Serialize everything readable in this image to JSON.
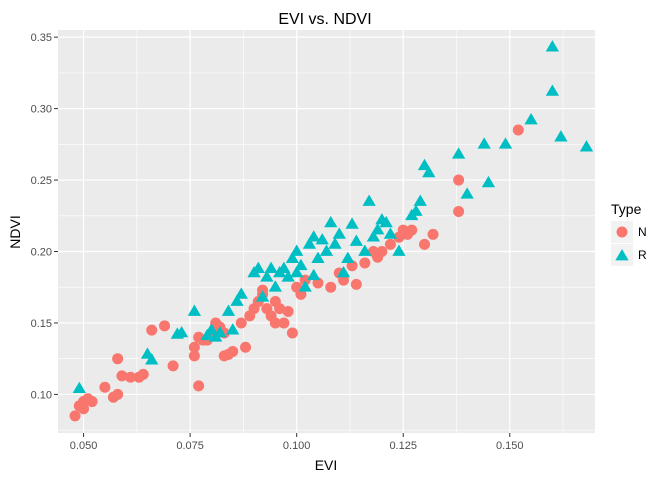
{
  "chart_data": {
    "type": "scatter",
    "title": "EVI vs. NDVI",
    "xlabel": "EVI",
    "ylabel": "NDVI",
    "xlim": [
      0.044,
      0.17
    ],
    "ylim": [
      0.073,
      0.355
    ],
    "x_ticks": [
      0.05,
      0.075,
      0.1,
      0.125,
      0.15
    ],
    "x_tick_labels": [
      "0.050",
      "0.075",
      "0.100",
      "0.125",
      "0.150"
    ],
    "y_ticks": [
      0.1,
      0.15,
      0.2,
      0.25,
      0.3,
      0.35
    ],
    "y_tick_labels": [
      "0.10",
      "0.15",
      "0.20",
      "0.25",
      "0.30",
      "0.35"
    ],
    "grid": true,
    "legend": {
      "title": "Type",
      "placement": "right"
    },
    "colors": {
      "N": "#F8766D",
      "R": "#00BFC4",
      "panel": "#EBEBEB",
      "grid": "#FFFFFF"
    },
    "series": [
      {
        "name": "N",
        "marker": "circle",
        "points": [
          [
            0.048,
            0.085
          ],
          [
            0.049,
            0.092
          ],
          [
            0.05,
            0.095
          ],
          [
            0.05,
            0.09
          ],
          [
            0.051,
            0.097
          ],
          [
            0.052,
            0.095
          ],
          [
            0.055,
            0.105
          ],
          [
            0.057,
            0.098
          ],
          [
            0.058,
            0.1
          ],
          [
            0.058,
            0.125
          ],
          [
            0.059,
            0.113
          ],
          [
            0.061,
            0.112
          ],
          [
            0.063,
            0.112
          ],
          [
            0.064,
            0.114
          ],
          [
            0.066,
            0.145
          ],
          [
            0.069,
            0.148
          ],
          [
            0.071,
            0.12
          ],
          [
            0.076,
            0.133
          ],
          [
            0.076,
            0.127
          ],
          [
            0.077,
            0.106
          ],
          [
            0.077,
            0.14
          ],
          [
            0.078,
            0.138
          ],
          [
            0.079,
            0.138
          ],
          [
            0.08,
            0.142
          ],
          [
            0.081,
            0.15
          ],
          [
            0.082,
            0.147
          ],
          [
            0.083,
            0.143
          ],
          [
            0.083,
            0.127
          ],
          [
            0.084,
            0.128
          ],
          [
            0.085,
            0.13
          ],
          [
            0.087,
            0.15
          ],
          [
            0.088,
            0.133
          ],
          [
            0.089,
            0.155
          ],
          [
            0.09,
            0.16
          ],
          [
            0.091,
            0.165
          ],
          [
            0.092,
            0.17
          ],
          [
            0.092,
            0.173
          ],
          [
            0.093,
            0.16
          ],
          [
            0.094,
            0.155
          ],
          [
            0.095,
            0.15
          ],
          [
            0.095,
            0.165
          ],
          [
            0.096,
            0.16
          ],
          [
            0.097,
            0.15
          ],
          [
            0.098,
            0.158
          ],
          [
            0.099,
            0.143
          ],
          [
            0.1,
            0.175
          ],
          [
            0.101,
            0.17
          ],
          [
            0.102,
            0.18
          ],
          [
            0.105,
            0.178
          ],
          [
            0.108,
            0.175
          ],
          [
            0.11,
            0.185
          ],
          [
            0.111,
            0.18
          ],
          [
            0.113,
            0.19
          ],
          [
            0.114,
            0.177
          ],
          [
            0.116,
            0.192
          ],
          [
            0.118,
            0.2
          ],
          [
            0.119,
            0.196
          ],
          [
            0.12,
            0.2
          ],
          [
            0.122,
            0.205
          ],
          [
            0.124,
            0.21
          ],
          [
            0.125,
            0.215
          ],
          [
            0.126,
            0.212
          ],
          [
            0.127,
            0.215
          ],
          [
            0.13,
            0.205
          ],
          [
            0.132,
            0.212
          ],
          [
            0.138,
            0.228
          ],
          [
            0.138,
            0.25
          ],
          [
            0.152,
            0.285
          ]
        ]
      },
      {
        "name": "R",
        "marker": "triangle",
        "points": [
          [
            0.049,
            0.104
          ],
          [
            0.065,
            0.128
          ],
          [
            0.066,
            0.124
          ],
          [
            0.072,
            0.142
          ],
          [
            0.073,
            0.143
          ],
          [
            0.076,
            0.158
          ],
          [
            0.079,
            0.141
          ],
          [
            0.08,
            0.145
          ],
          [
            0.081,
            0.14
          ],
          [
            0.082,
            0.143
          ],
          [
            0.084,
            0.158
          ],
          [
            0.085,
            0.145
          ],
          [
            0.086,
            0.165
          ],
          [
            0.087,
            0.17
          ],
          [
            0.09,
            0.185
          ],
          [
            0.091,
            0.188
          ],
          [
            0.092,
            0.168
          ],
          [
            0.093,
            0.182
          ],
          [
            0.094,
            0.188
          ],
          [
            0.095,
            0.175
          ],
          [
            0.096,
            0.185
          ],
          [
            0.097,
            0.188
          ],
          [
            0.098,
            0.182
          ],
          [
            0.099,
            0.195
          ],
          [
            0.1,
            0.185
          ],
          [
            0.1,
            0.2
          ],
          [
            0.101,
            0.19
          ],
          [
            0.102,
            0.175
          ],
          [
            0.103,
            0.205
          ],
          [
            0.104,
            0.21
          ],
          [
            0.104,
            0.183
          ],
          [
            0.105,
            0.195
          ],
          [
            0.106,
            0.208
          ],
          [
            0.107,
            0.2
          ],
          [
            0.108,
            0.22
          ],
          [
            0.109,
            0.205
          ],
          [
            0.11,
            0.212
          ],
          [
            0.111,
            0.185
          ],
          [
            0.112,
            0.195
          ],
          [
            0.113,
            0.219
          ],
          [
            0.114,
            0.207
          ],
          [
            0.116,
            0.2
          ],
          [
            0.117,
            0.235
          ],
          [
            0.118,
            0.21
          ],
          [
            0.119,
            0.215
          ],
          [
            0.12,
            0.222
          ],
          [
            0.121,
            0.22
          ],
          [
            0.122,
            0.212
          ],
          [
            0.124,
            0.2
          ],
          [
            0.127,
            0.225
          ],
          [
            0.128,
            0.228
          ],
          [
            0.129,
            0.235
          ],
          [
            0.13,
            0.26
          ],
          [
            0.131,
            0.255
          ],
          [
            0.138,
            0.268
          ],
          [
            0.14,
            0.24
          ],
          [
            0.144,
            0.275
          ],
          [
            0.145,
            0.248
          ],
          [
            0.149,
            0.275
          ],
          [
            0.155,
            0.292
          ],
          [
            0.16,
            0.343
          ],
          [
            0.16,
            0.312
          ],
          [
            0.162,
            0.28
          ],
          [
            0.168,
            0.273
          ]
        ]
      }
    ]
  }
}
